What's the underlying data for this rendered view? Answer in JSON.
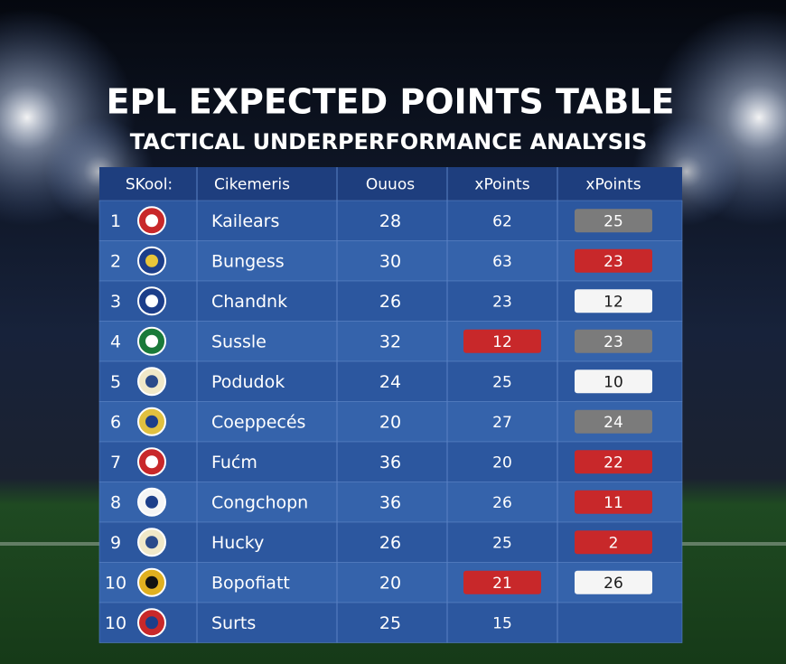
{
  "header": {
    "title": "EPL EXPECTED POINTS TABLE",
    "subtitle": "TACTICAL UNDERPERFORMANCE ANALYSIS"
  },
  "table": {
    "columns": [
      "SKool:",
      "Cikemeris",
      "Ouuos",
      "xPoints",
      "xPoints"
    ],
    "rows": [
      {
        "rank": "1",
        "team": "Kailears",
        "c3": "28",
        "c4": "62",
        "c5": "25",
        "c5_color": "#7b7b7b"
      },
      {
        "rank": "2",
        "team": "Bungess",
        "c3": "30",
        "c4": "63",
        "c5": "23",
        "c5_color": "#c8282a"
      },
      {
        "rank": "3",
        "team": "Chandnk",
        "c3": "26",
        "c4": "23",
        "c5": "12",
        "c5_color": "#f5f5f5"
      },
      {
        "rank": "4",
        "team": "Sussle",
        "c3": "32",
        "c4": "12",
        "c4_color": "#c8282a",
        "c5": "23",
        "c5_color": "#7b7b7b"
      },
      {
        "rank": "5",
        "team": "Podudok",
        "c3": "24",
        "c4": "25",
        "c5": "10",
        "c5_color": "#f5f5f5"
      },
      {
        "rank": "6",
        "team": "Coeppecés",
        "c3": "20",
        "c4": "27",
        "c5": "24",
        "c5_color": "#7b7b7b"
      },
      {
        "rank": "7",
        "team": "Fućm",
        "c3": "36",
        "c4": "20",
        "c5": "22",
        "c5_color": "#c8282a"
      },
      {
        "rank": "8",
        "team": "Congchopn",
        "c3": "36",
        "c4": "26",
        "c5": "11",
        "c5_color": "#c8282a"
      },
      {
        "rank": "9",
        "team": "Hucky",
        "c3": "26",
        "c4": "25",
        "c5": "2",
        "c5_color": "#c8282a"
      },
      {
        "rank": "10",
        "team": "Bopofiatt",
        "c3": "20",
        "c4": "21",
        "c4_color": "#c8282a",
        "c5": "26",
        "c5_color": "#f5f5f5"
      },
      {
        "rank": "10",
        "team": "Surts",
        "c3": "25",
        "c4": "15"
      }
    ]
  }
}
